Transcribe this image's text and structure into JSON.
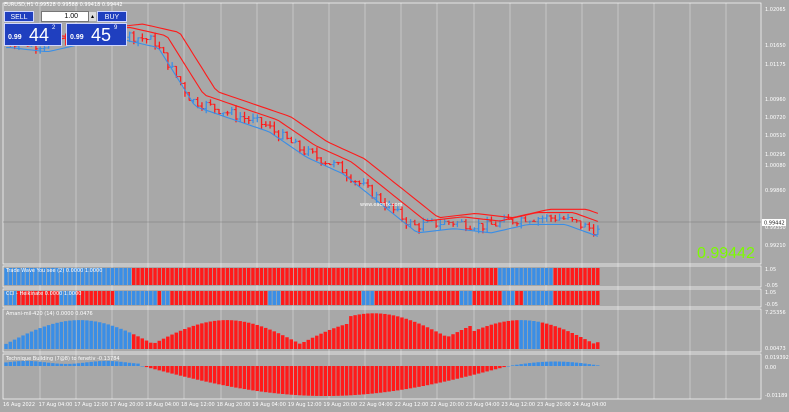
{
  "window": {
    "title": "EURUSD,H1  0.99528 0.99588 0.99418 0.99442",
    "watermark": "www.eachfx.com"
  },
  "trade_panel": {
    "sell_label": "SELL",
    "buy_label": "BUY",
    "lot_value": "1.00",
    "sell_price_small": "0.99",
    "sell_price_big": "44",
    "sell_price_sup": "2",
    "buy_price_small": "0.99",
    "buy_price_big": "45",
    "buy_price_sup": "9"
  },
  "current_price_large": "0.99442",
  "price_axis": {
    "labels": [
      "1.02065",
      "1.01650",
      "1.01175",
      "1.00960",
      "1.00720",
      "1.00510",
      "1.00295",
      "1.00080",
      "0.99860",
      "0.99442",
      "0.99350",
      "0.99210"
    ],
    "current_price_tag": "0.99442"
  },
  "time_axis": {
    "labels": [
      "16 Aug 2022",
      "17 Aug 04:00",
      "17 Aug 12:00",
      "17 Aug 20:00",
      "18 Aug 04:00",
      "18 Aug 12:00",
      "18 Aug 20:00",
      "19 Aug 04:00",
      "19 Aug 12:00",
      "19 Aug 20:00",
      "22 Aug 04:00",
      "22 Aug 12:00",
      "22 Aug 20:00",
      "23 Aug 04:00",
      "23 Aug 12:00",
      "23 Aug 20:00",
      "24 Aug 04:00"
    ]
  },
  "indicators": [
    {
      "label": "Trade Wave You see (2) 0.0000 1.0000",
      "scale_top": "1.05",
      "scale_bottom": "-0.05"
    },
    {
      "label": "CCI - Heikinate 0.0000 1.0000",
      "scale_top": "1.05",
      "scale_bottom": "-0.05"
    },
    {
      "label": "Amani-mil-420 (14) 0.0000 0.0476",
      "scale_top": "7.25356",
      "scale_bottom": "0.00473"
    },
    {
      "label": "Technique Building (7@8) to fenetiv -0.13784",
      "scale_top": "0.019392",
      "scale_mid": "0.00",
      "scale_bottom": "-0.01189"
    }
  ],
  "colors": {
    "background": "#a8a8a8",
    "bear": "#ff1a1a",
    "bull": "#3a8ee6",
    "price_line": "#7cfc00",
    "grid": "#ffffff"
  },
  "chart_data": {
    "type": "bar",
    "ylim": [
      0.9905,
      1.0215
    ],
    "x": [
      "16 Aug 2022",
      "17 Aug 04:00",
      "17 Aug 12:00",
      "17 Aug 20:00",
      "18 Aug 04:00",
      "18 Aug 12:00",
      "18 Aug 20:00",
      "19 Aug 04:00",
      "19 Aug 12:00",
      "19 Aug 20:00",
      "22 Aug 04:00",
      "22 Aug 12:00",
      "22 Aug 20:00",
      "23 Aug 04:00",
      "23 Aug 12:00",
      "23 Aug 20:00",
      "24 Aug 04:00"
    ],
    "series": [
      {
        "name": "close",
        "values": [
          1.017,
          1.0165,
          1.0175,
          1.018,
          1.017,
          1.01,
          1.0085,
          1.007,
          1.004,
          1.002,
          0.9985,
          0.995,
          0.9955,
          0.995,
          0.996,
          0.996,
          0.9944
        ]
      }
    ],
    "grid": true
  }
}
